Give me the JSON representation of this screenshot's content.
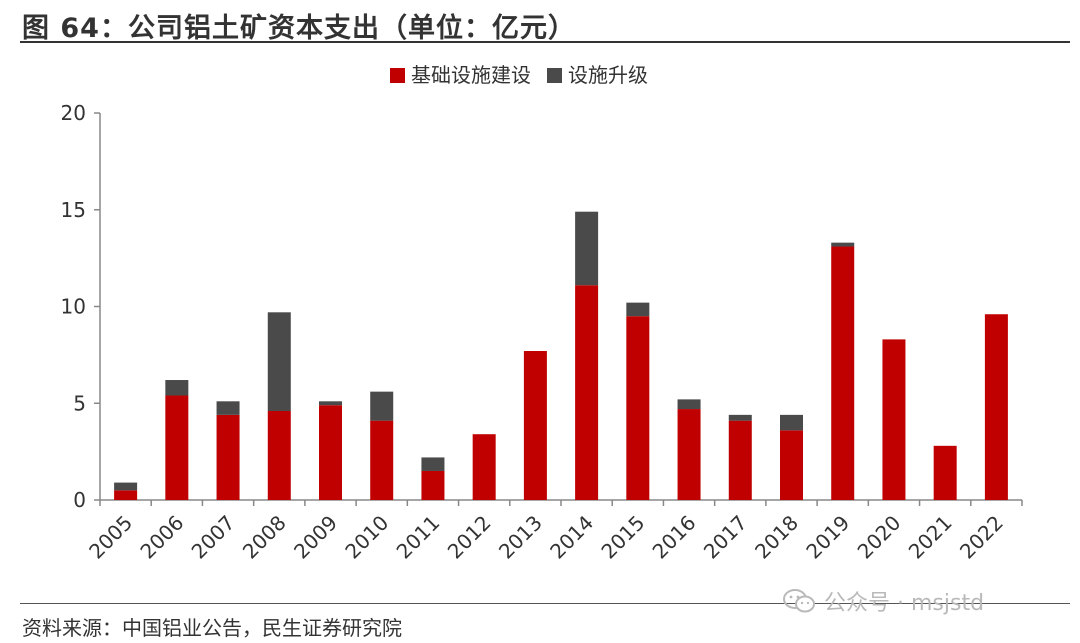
{
  "figure": {
    "title": "图 64：公司铝土矿资本支出（单位：亿元）",
    "source": "资料来源：中国铝业公告，民生证券研究院",
    "watermark": "公众号 · msjstd"
  },
  "chart_data": {
    "type": "bar",
    "stacked": true,
    "categories": [
      "2005",
      "2006",
      "2007",
      "2008",
      "2009",
      "2010",
      "2011",
      "2012",
      "2013",
      "2014",
      "2015",
      "2016",
      "2017",
      "2018",
      "2019",
      "2020",
      "2021",
      "2022"
    ],
    "series": [
      {
        "name": "基础设施建设",
        "color": "#c00000",
        "values": [
          0.5,
          5.4,
          4.4,
          4.6,
          4.9,
          4.1,
          1.5,
          3.4,
          7.7,
          11.1,
          9.5,
          4.7,
          4.1,
          3.6,
          13.1,
          8.3,
          2.8,
          9.6
        ]
      },
      {
        "name": "设施升级",
        "color": "#4a4a4a",
        "values": [
          0.4,
          0.8,
          0.7,
          5.1,
          0.2,
          1.5,
          0.7,
          0.0,
          0.0,
          3.8,
          0.7,
          0.5,
          0.3,
          0.8,
          0.2,
          0.0,
          0.0,
          0.0
        ]
      }
    ],
    "ylim": [
      0,
      20
    ],
    "yticks": [
      0,
      5,
      10,
      15,
      20
    ],
    "legend_position": "top-center",
    "grid": false
  }
}
